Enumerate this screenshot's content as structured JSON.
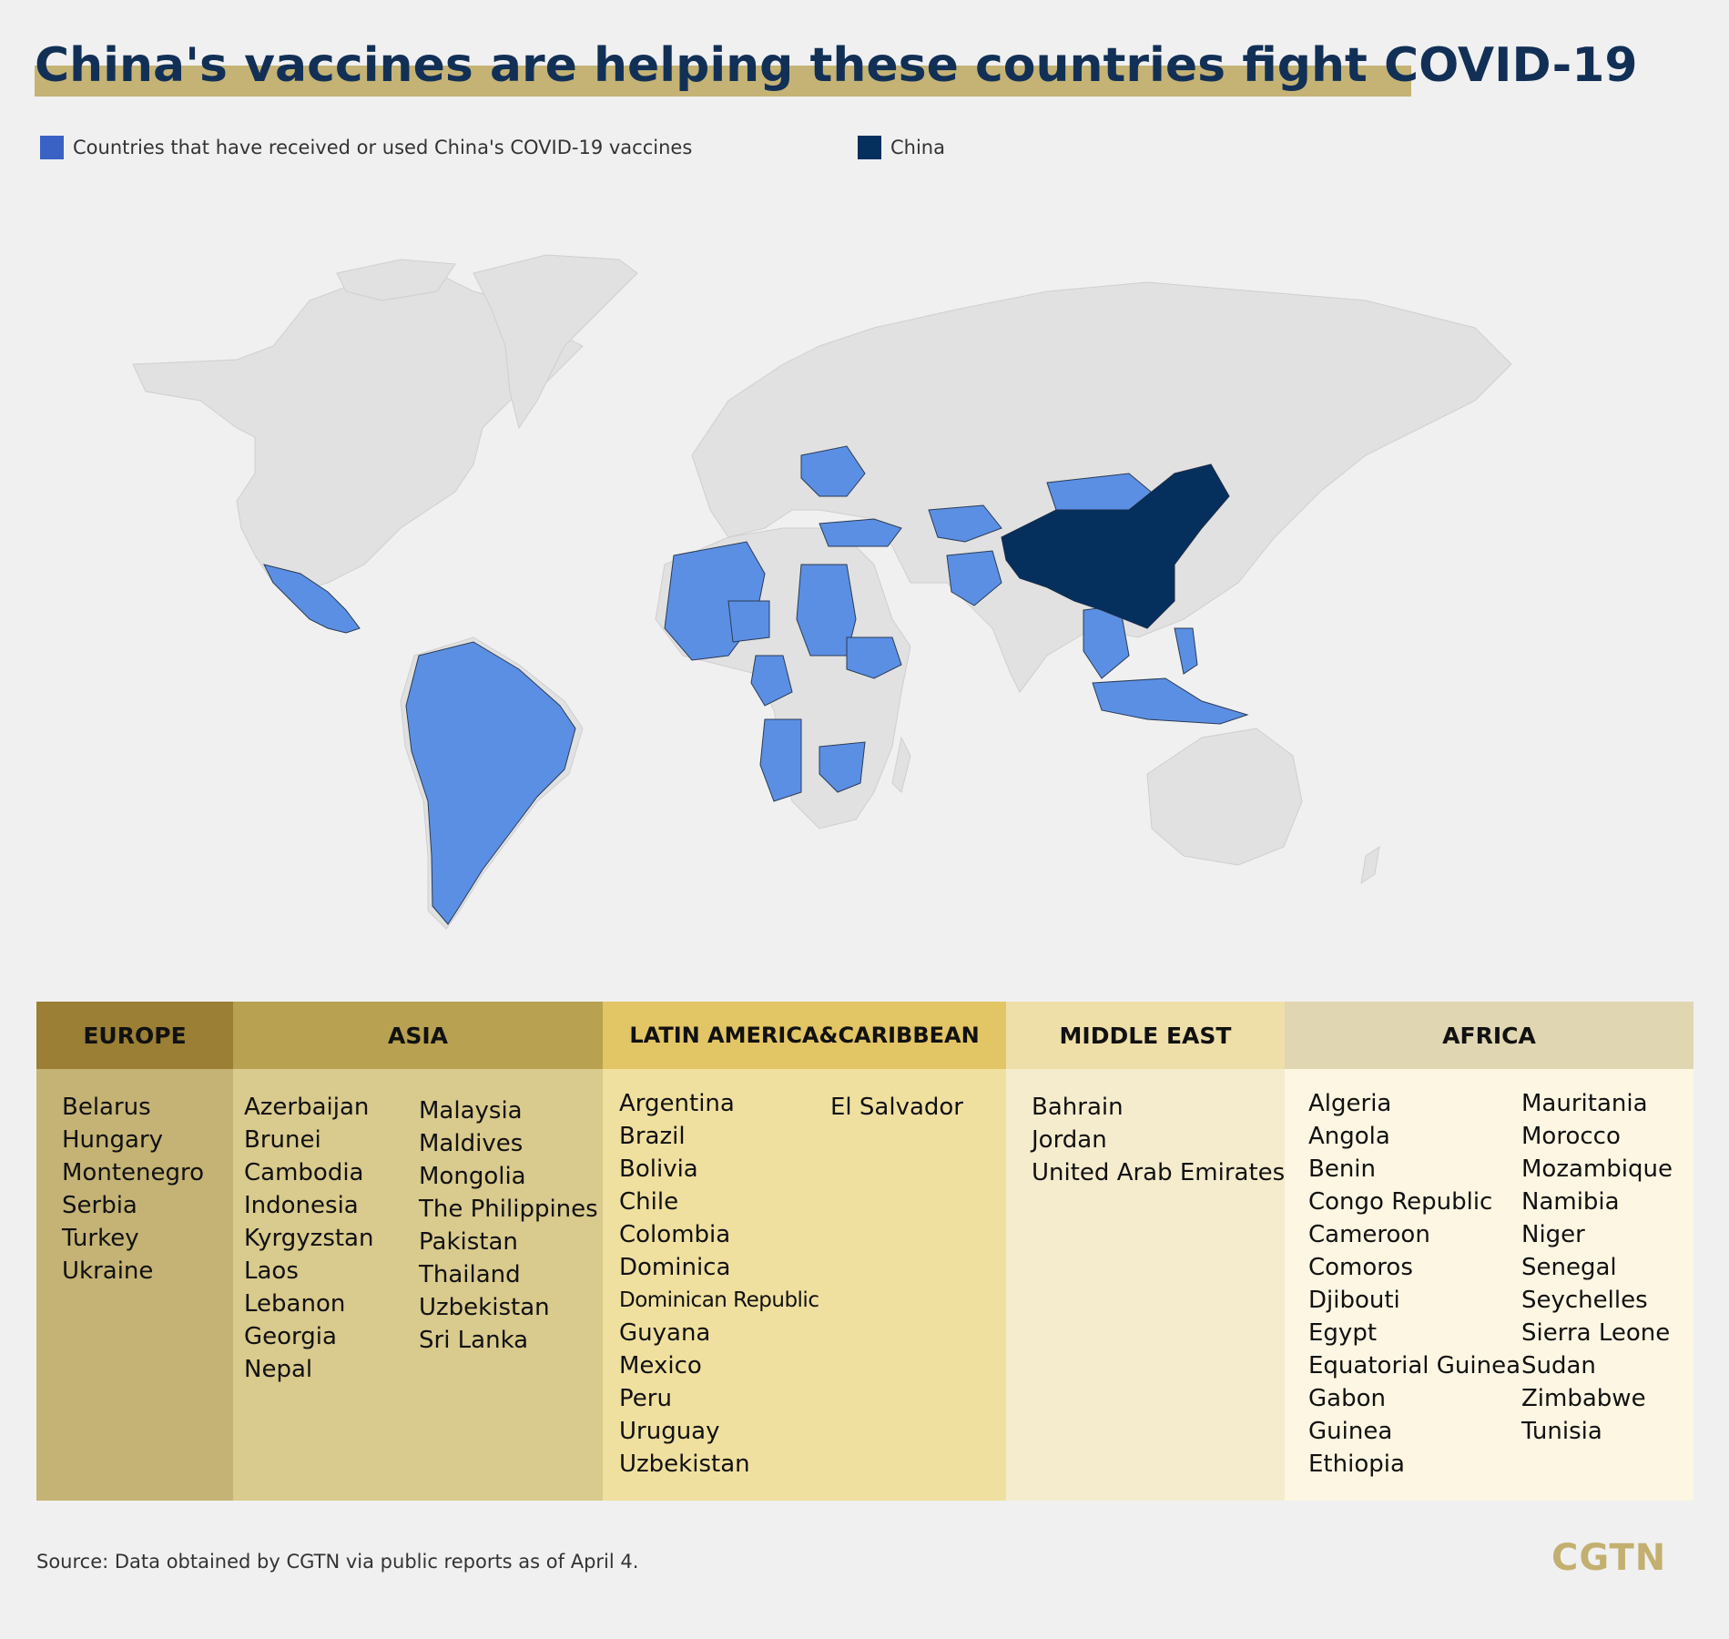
{
  "title": "China's vaccines are helping these countries fight COVID-19",
  "legend": {
    "received_label": "Countries that have received or used China's COVID-19 vaccines",
    "china_label": "China"
  },
  "colors": {
    "received": "#5b8fe3",
    "china": "#05305e",
    "land": "#e1e1e1",
    "background": "#f0f0f0",
    "accent": "#c5b375"
  },
  "regions": {
    "europe": {
      "header": "EUROPE",
      "countries": [
        "Belarus",
        "Hungary",
        "Montenegro",
        "Serbia",
        "Turkey",
        "Ukraine"
      ]
    },
    "asia": {
      "header": "ASIA",
      "countries_col1": [
        "Azerbaijan",
        "Brunei",
        "Cambodia",
        "Indonesia",
        "Kyrgyzstan",
        "Laos",
        "Lebanon",
        "Georgia",
        "Nepal"
      ],
      "countries_col2": [
        "Malaysia",
        "Maldives",
        "Mongolia",
        "The Philippines",
        "Pakistan",
        "Thailand",
        "Uzbekistan",
        "Sri Lanka"
      ]
    },
    "latam": {
      "header": "LATIN AMERICA&CARIBBEAN",
      "countries_col1": [
        "Argentina",
        "Brazil",
        "Bolivia",
        "Chile",
        "Colombia",
        "Dominica",
        "Dominican Republic",
        "Guyana",
        "Mexico",
        "Peru",
        "Uruguay",
        "Uzbekistan"
      ],
      "countries_col2": [
        "El Salvador"
      ]
    },
    "middle_east": {
      "header": "MIDDLE EAST",
      "countries": [
        "Bahrain",
        "Jordan",
        "United Arab Emirates"
      ]
    },
    "africa": {
      "header": "AFRICA",
      "countries_col1": [
        "Algeria",
        "Angola",
        "Benin",
        "Congo Republic",
        "Cameroon",
        "Comoros",
        "Djibouti",
        "Egypt",
        "Equatorial Guinea",
        "Gabon",
        "Guinea",
        "Ethiopia"
      ],
      "countries_col2": [
        "Mauritania",
        "Morocco",
        "Mozambique",
        "Namibia",
        "Niger",
        "Senegal",
        "Seychelles",
        "Sierra Leone",
        "Sudan",
        "Zimbabwe",
        "Tunisia"
      ]
    }
  },
  "source": "Source: Data obtained by CGTN via public reports as of April 4.",
  "logo": "CGTN"
}
